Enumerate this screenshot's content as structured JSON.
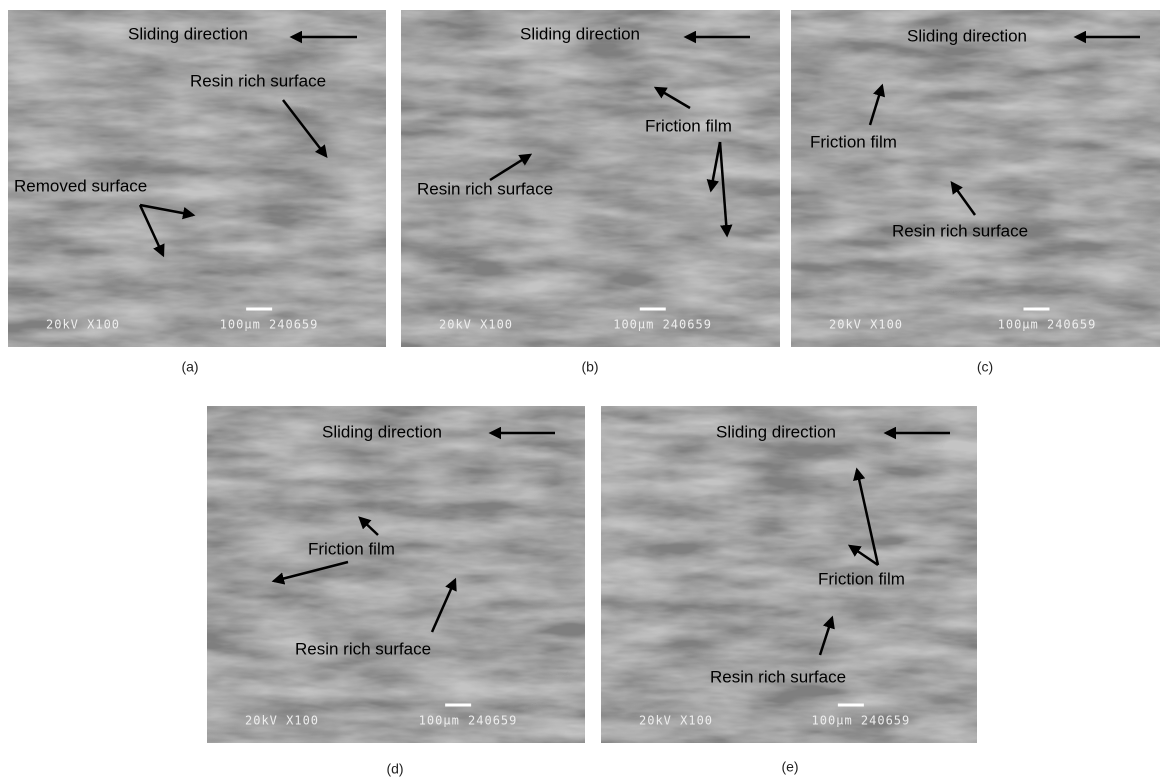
{
  "panels": [
    {
      "label": "(a)",
      "sem_info": "20kV X100",
      "scale_info": "100µm 240659",
      "annotations": [
        "Sliding direction",
        "Resin rich surface",
        "Removed surface"
      ]
    },
    {
      "label": "(b)",
      "sem_info": "20kV X100",
      "scale_info": "100µm 240659",
      "annotations": [
        "Sliding direction",
        "Friction film",
        "Resin rich surface"
      ]
    },
    {
      "label": "(c)",
      "sem_info": "20kV X100",
      "scale_info": "100µm 240659",
      "annotations": [
        "Sliding direction",
        "Friction film",
        "Resin rich surface"
      ]
    },
    {
      "label": "(d)",
      "sem_info": "20kV X100",
      "scale_info": "100µm 240659",
      "annotations": [
        "Sliding direction",
        "Friction film",
        "Resin rich surface"
      ]
    },
    {
      "label": "(e)",
      "sem_info": "20kV X100",
      "scale_info": "100µm 240659",
      "annotations": [
        "Sliding direction",
        "Friction film",
        "Resin rich surface"
      ]
    }
  ]
}
